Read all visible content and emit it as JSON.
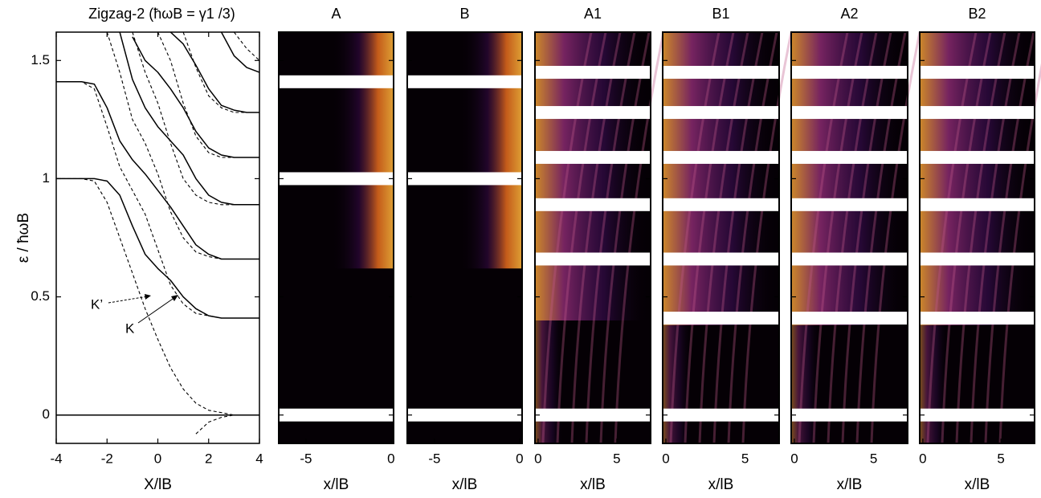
{
  "chart_data": [
    {
      "type": "line",
      "title": "Zigzag-2 (ħωB = γ1 /3)",
      "xlabel": "X/lB",
      "ylabel": "ε / ħωB",
      "xlim": [
        -4,
        4
      ],
      "xticks": [
        -4,
        -2,
        0,
        2,
        4
      ],
      "ylim": [
        -0.12,
        1.62
      ],
      "yticks": [
        0,
        0.5,
        1,
        1.5
      ],
      "annotations": [
        "K’",
        "K"
      ],
      "x": [
        -4,
        -3.5,
        -3,
        -2.5,
        -2,
        -1.5,
        -1,
        -0.5,
        0,
        0.5,
        1,
        1.5,
        2,
        2.5,
        3,
        3.5,
        4
      ],
      "series": [
        {
          "linestyle": "solid",
          "color": "#000000",
          "values": [
            0,
            0,
            0,
            0,
            0,
            0,
            0,
            0,
            0,
            0,
            0,
            0,
            0,
            0,
            0,
            0,
            0
          ]
        },
        {
          "linestyle": "solid",
          "color": "#000000",
          "values": [
            1,
            1,
            1,
            1,
            0.99,
            0.93,
            0.8,
            0.68,
            0.62,
            0.57,
            0.5,
            0.45,
            0.42,
            0.41,
            0.41,
            0.41,
            0.41
          ]
        },
        {
          "linestyle": "solid",
          "color": "#000000",
          "values": [
            1.41,
            1.41,
            1.41,
            1.4,
            1.3,
            1.16,
            1.08,
            1.02,
            0.95,
            0.88,
            0.8,
            0.72,
            0.68,
            0.66,
            0.66,
            0.66,
            0.66
          ]
        },
        {
          "linestyle": "solid",
          "color": "#000000",
          "values": [
            null,
            null,
            null,
            null,
            null,
            1.62,
            1.42,
            1.3,
            1.22,
            1.16,
            1.1,
            1.0,
            0.93,
            0.9,
            0.89,
            0.89,
            0.89
          ]
        },
        {
          "linestyle": "solid",
          "color": "#000000",
          "values": [
            null,
            null,
            null,
            null,
            null,
            null,
            1.6,
            1.5,
            1.45,
            1.38,
            1.3,
            1.2,
            1.13,
            1.1,
            1.09,
            1.09,
            1.09
          ]
        },
        {
          "linestyle": "solid",
          "color": "#000000",
          "values": [
            null,
            null,
            null,
            null,
            null,
            null,
            null,
            null,
            null,
            1.62,
            1.57,
            1.48,
            1.38,
            1.31,
            1.29,
            1.28,
            1.28
          ]
        },
        {
          "linestyle": "solid",
          "color": "#000000",
          "values": [
            null,
            null,
            null,
            null,
            null,
            null,
            null,
            null,
            null,
            null,
            null,
            null,
            null,
            1.62,
            1.52,
            1.47,
            1.45
          ]
        },
        {
          "linestyle": "dashed",
          "color": "#000000",
          "values": [
            null,
            null,
            null,
            null,
            null,
            null,
            null,
            null,
            null,
            null,
            null,
            -0.08,
            -0.03,
            -0.01,
            0,
            0,
            0
          ]
        },
        {
          "linestyle": "dashed",
          "color": "#000000",
          "values": [
            1,
            1,
            1,
            0.99,
            0.9,
            0.75,
            0.6,
            0.45,
            0.32,
            0.2,
            0.11,
            0.05,
            0.02,
            0.01,
            0,
            0,
            0
          ]
        },
        {
          "linestyle": "dashed",
          "color": "#000000",
          "values": [
            1.41,
            1.41,
            1.41,
            1.38,
            1.22,
            1.05,
            0.95,
            0.85,
            0.7,
            0.55,
            0.47,
            0.43,
            0.42,
            0.41,
            0.41,
            0.41,
            0.41
          ]
        },
        {
          "linestyle": "dashed",
          "color": "#000000",
          "values": [
            null,
            null,
            null,
            null,
            1.62,
            1.45,
            1.25,
            1.15,
            1.02,
            0.86,
            0.75,
            0.69,
            0.67,
            0.66,
            0.66,
            0.66,
            0.66
          ]
        },
        {
          "linestyle": "dashed",
          "color": "#000000",
          "values": [
            null,
            null,
            null,
            null,
            null,
            null,
            1.62,
            1.45,
            1.32,
            1.15,
            1.0,
            0.93,
            0.9,
            0.89,
            0.89,
            0.89,
            0.89
          ]
        },
        {
          "linestyle": "dashed",
          "color": "#000000",
          "values": [
            null,
            null,
            null,
            null,
            null,
            null,
            null,
            null,
            1.62,
            1.5,
            1.32,
            1.18,
            1.11,
            1.09,
            1.09,
            1.09,
            1.09
          ]
        },
        {
          "linestyle": "dashed",
          "color": "#000000",
          "values": [
            null,
            null,
            null,
            null,
            null,
            null,
            null,
            null,
            null,
            null,
            1.62,
            1.47,
            1.35,
            1.3,
            1.28,
            1.28,
            1.28
          ]
        },
        {
          "linestyle": "dashed",
          "color": "#000000",
          "values": [
            null,
            null,
            null,
            null,
            null,
            null,
            null,
            null,
            null,
            null,
            null,
            null,
            null,
            null,
            1.62,
            1.55,
            1.5
          ]
        }
      ]
    },
    {
      "type": "heatmap",
      "title": "A",
      "xlabel": "x/lB",
      "xlim": [
        -6.6,
        0.15
      ],
      "xticks": [
        -5,
        0
      ],
      "ylim": [
        -0.12,
        1.62
      ],
      "side": "right",
      "bands": [
        0,
        1.0,
        1.41
      ]
    },
    {
      "type": "heatmap",
      "title": "B",
      "xlabel": "x/lB",
      "xlim": [
        -6.6,
        0.15
      ],
      "xticks": [
        -5,
        0
      ],
      "ylim": [
        -0.12,
        1.62
      ],
      "side": "right",
      "bands": [
        0,
        1.0,
        1.41
      ]
    },
    {
      "type": "heatmap",
      "title": "A1",
      "xlabel": "x/lB",
      "xlim": [
        -0.2,
        7.15
      ],
      "xticks": [
        0,
        5
      ],
      "ylim": [
        -0.12,
        1.62
      ],
      "side": "left",
      "bands": [
        0,
        0.66,
        0.89,
        1.09,
        1.28,
        1.45
      ]
    },
    {
      "type": "heatmap",
      "title": "B1",
      "xlabel": "x/lB",
      "xlim": [
        -0.2,
        7.15
      ],
      "xticks": [
        0,
        5
      ],
      "ylim": [
        -0.12,
        1.62
      ],
      "side": "left",
      "bands": [
        0,
        0.41,
        0.66,
        0.89,
        1.09,
        1.28,
        1.45
      ]
    },
    {
      "type": "heatmap",
      "title": "A2",
      "xlabel": "x/lB",
      "xlim": [
        -0.2,
        7.15
      ],
      "xticks": [
        0,
        5
      ],
      "ylim": [
        -0.12,
        1.62
      ],
      "side": "left",
      "bands": [
        0,
        0.41,
        0.66,
        0.89,
        1.09,
        1.28,
        1.45
      ]
    },
    {
      "type": "heatmap",
      "title": "B2",
      "xlabel": "x/lB",
      "xlim": [
        -0.2,
        7.15
      ],
      "xticks": [
        0,
        5
      ],
      "ylim": [
        -0.12,
        1.62
      ],
      "side": "left",
      "bands": [
        0,
        0.41,
        0.66,
        0.89,
        1.09,
        1.28,
        1.45
      ]
    }
  ]
}
